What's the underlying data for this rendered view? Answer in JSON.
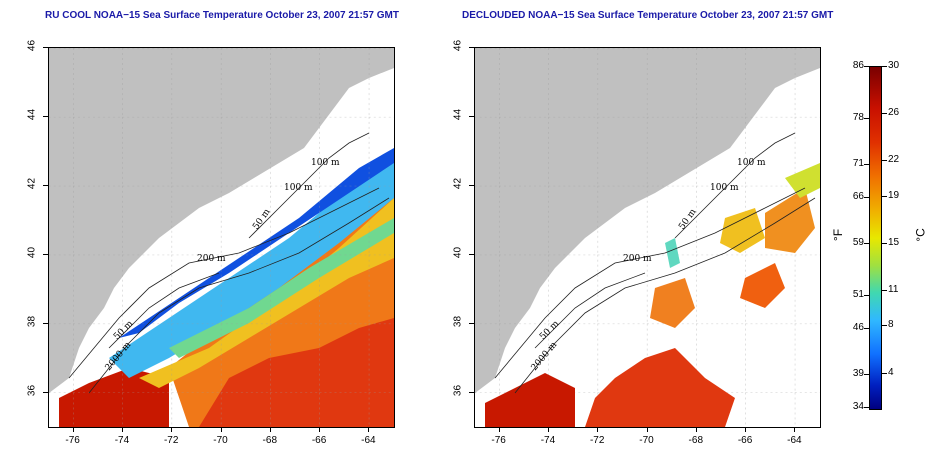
{
  "titles": {
    "left": "RU COOL NOAA−15 Sea Surface Temperature October 23, 2007 21:57 GMT",
    "right": "DECLOUDED NOAA−15 Sea Surface Temperature October 23, 2007 21:57 GMT"
  },
  "axes": {
    "lat_ticks": [
      "46",
      "44",
      "42",
      "40",
      "38",
      "36"
    ],
    "lon_ticks": [
      "-76",
      "-74",
      "-72",
      "-70",
      "-68",
      "-66",
      "-64"
    ],
    "lat_range": [
      35,
      46
    ],
    "lon_range": [
      -77,
      -63
    ]
  },
  "contours": {
    "left": [
      "100 m",
      "100 m",
      "50 m",
      "200 m",
      "50 m",
      "2000 m"
    ],
    "right": [
      "100 m",
      "100 m",
      "50 m",
      "200 m",
      "50 m",
      "2000 m"
    ]
  },
  "colorbar": {
    "fahrenheit_ticks": [
      "86",
      "78",
      "71",
      "66",
      "59",
      "51",
      "46",
      "39",
      "34"
    ],
    "celsius_ticks": [
      "30",
      "26",
      "22",
      "19",
      "15",
      "11",
      "8",
      "4"
    ],
    "unit_f": "°F",
    "unit_c": "°C",
    "celsius_range": [
      1,
      30
    ],
    "colors": [
      "#7a0000",
      "#c81000",
      "#f07000",
      "#e8e800",
      "#40d8b0",
      "#1070ff",
      "#000080"
    ]
  },
  "colors": {
    "land": "#c0c0c0",
    "title": "#1a1aa8"
  }
}
